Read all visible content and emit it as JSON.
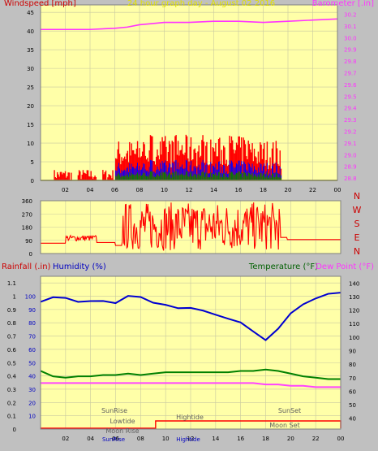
{
  "colors": {
    "bg": "#c0c0c0",
    "plot": "#ffffa8",
    "grid": "#c8c8a0",
    "wind": "#ff0000",
    "windBlue": "#0000ff",
    "windGreen": "#008000",
    "baro": "#ff33ff",
    "dir": "#ff0000",
    "humidity": "#0000d0",
    "temperature": "#008000",
    "dew": "#ff44ff",
    "rain": "#ff0000"
  },
  "top": {
    "title": "24 hour graph day - August 02 2016",
    "left_label": "Windspeed [mph]",
    "right_label": "Barometer [.in]"
  },
  "mid": {
    "compass": [
      "N",
      "W",
      "S",
      "E",
      "N"
    ]
  },
  "bottom": {
    "rain_label": "Rainfall (.in)",
    "humidity_label": "Humidity (%)",
    "temp_label": "Temperature (°F)",
    "dew_label": "Dew Point (°F)",
    "annotations": [
      "SunRise",
      "Lowtide",
      "Moon Rise",
      "Hightide",
      "SunSet",
      "Moon Set"
    ],
    "bottom_labels": [
      "SunRise",
      "Hightide"
    ]
  },
  "chart_data": [
    {
      "type": "line",
      "name": "wind-baro",
      "x_ticks": [
        "02",
        "04",
        "06",
        "08",
        "10",
        "12",
        "14",
        "16",
        "18",
        "20",
        "22",
        "00"
      ],
      "y_left": {
        "ticks": [
          0,
          5,
          10,
          15,
          20,
          25,
          30,
          35,
          40,
          45
        ],
        "range": [
          0,
          47
        ]
      },
      "y_right": {
        "ticks": [
          28.8,
          28.9,
          29.0,
          29.1,
          29.2,
          29.3,
          29.4,
          29.5,
          29.6,
          29.7,
          29.8,
          29.9,
          30.0,
          30.1,
          30.2
        ],
        "range": [
          28.78,
          30.28
        ]
      },
      "series": [
        {
          "name": "Barometer",
          "axis": "right",
          "x": [
            0,
            2,
            4,
            6,
            7,
            8,
            9,
            10,
            12,
            14,
            16,
            18,
            20,
            22,
            24
          ],
          "values": [
            30.07,
            30.07,
            30.07,
            30.08,
            30.09,
            30.11,
            30.12,
            30.13,
            30.13,
            30.14,
            30.14,
            30.13,
            30.14,
            30.15,
            30.16
          ]
        }
      ]
    },
    {
      "type": "line",
      "name": "wind-direction",
      "y": {
        "ticks": [
          0,
          90,
          180,
          270,
          360
        ],
        "range": [
          0,
          360
        ]
      }
    },
    {
      "type": "line",
      "name": "rain-humidity-temp",
      "x_ticks": [
        "02",
        "04",
        "06",
        "08",
        "10",
        "12",
        "14",
        "16",
        "18",
        "20",
        "22",
        "00"
      ],
      "y_left": {
        "ticks": [
          0,
          0.1,
          0.2,
          0.3,
          0.4,
          0.5,
          0.6,
          0.7,
          0.8,
          0.9,
          1,
          1.1
        ],
        "labels": [
          "0",
          "0.1",
          "0.2",
          "0.3",
          "0.4",
          "0.5",
          "0.6",
          "0.7",
          "0.8",
          "0.9",
          "1",
          "1.1"
        ],
        "range": [
          0,
          1.15
        ]
      },
      "y_inner": {
        "labels": [
          "10",
          "20",
          "30",
          "40",
          "50",
          "60",
          "70",
          "80",
          "90",
          "100"
        ]
      },
      "y_right": {
        "ticks": [
          40,
          50,
          60,
          70,
          80,
          90,
          100,
          110,
          120,
          130,
          140
        ],
        "range": [
          32,
          145
        ]
      },
      "series": [
        {
          "name": "Humidity",
          "axis": "inner",
          "x": [
            0,
            1,
            2,
            3,
            4,
            5,
            6,
            7,
            8,
            9,
            10,
            11,
            12,
            13,
            14,
            15,
            16,
            17,
            18,
            19,
            20,
            21,
            22,
            23,
            24
          ],
          "values": [
            85,
            89,
            88,
            85,
            86,
            86,
            85,
            90,
            89,
            85,
            84,
            81,
            81,
            79,
            77,
            74,
            71,
            65,
            59,
            67,
            78,
            84,
            88,
            91,
            92
          ]
        },
        {
          "name": "Temperature",
          "axis": "right",
          "x": [
            0,
            1,
            2,
            3,
            4,
            5,
            6,
            7,
            8,
            9,
            10,
            11,
            12,
            13,
            14,
            15,
            16,
            17,
            18,
            19,
            20,
            21,
            22,
            23,
            24
          ],
          "values": [
            75,
            71,
            70,
            71,
            71,
            72,
            72,
            73,
            72,
            73,
            74,
            74,
            74,
            74,
            74,
            74,
            75,
            75,
            76,
            75,
            73,
            71,
            70,
            69,
            69
          ]
        },
        {
          "name": "Dew Point",
          "axis": "right",
          "x": [
            0,
            1,
            2,
            3,
            4,
            5,
            6,
            7,
            8,
            9,
            10,
            11,
            12,
            13,
            14,
            15,
            16,
            17,
            18,
            19,
            20,
            21,
            22,
            23,
            24
          ],
          "values": [
            66,
            66,
            66,
            66,
            66,
            66,
            66,
            66,
            66,
            66,
            66,
            66,
            66,
            66,
            66,
            66,
            66,
            66,
            65,
            65,
            64,
            64,
            63,
            63,
            63
          ]
        }
      ]
    }
  ]
}
